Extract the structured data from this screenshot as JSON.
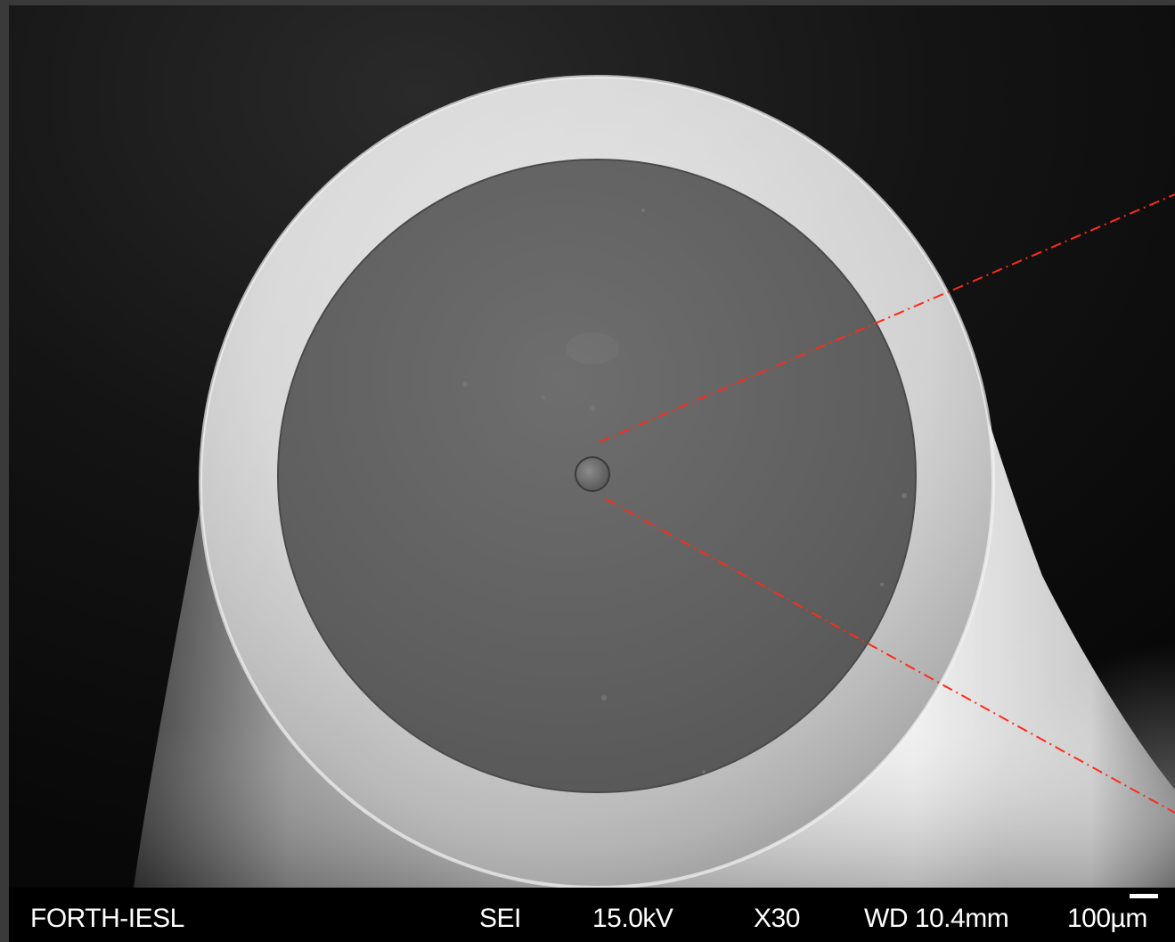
{
  "micrograph": {
    "subject": "fiber-cross-section",
    "annotation_color": "#ff2a1a"
  },
  "databar": {
    "lab": "FORTH-IESL",
    "detector": "SEI",
    "voltage": "15.0kV",
    "magnification": "X30",
    "working_distance": "WD 10.4mm",
    "scale": "100µm"
  }
}
